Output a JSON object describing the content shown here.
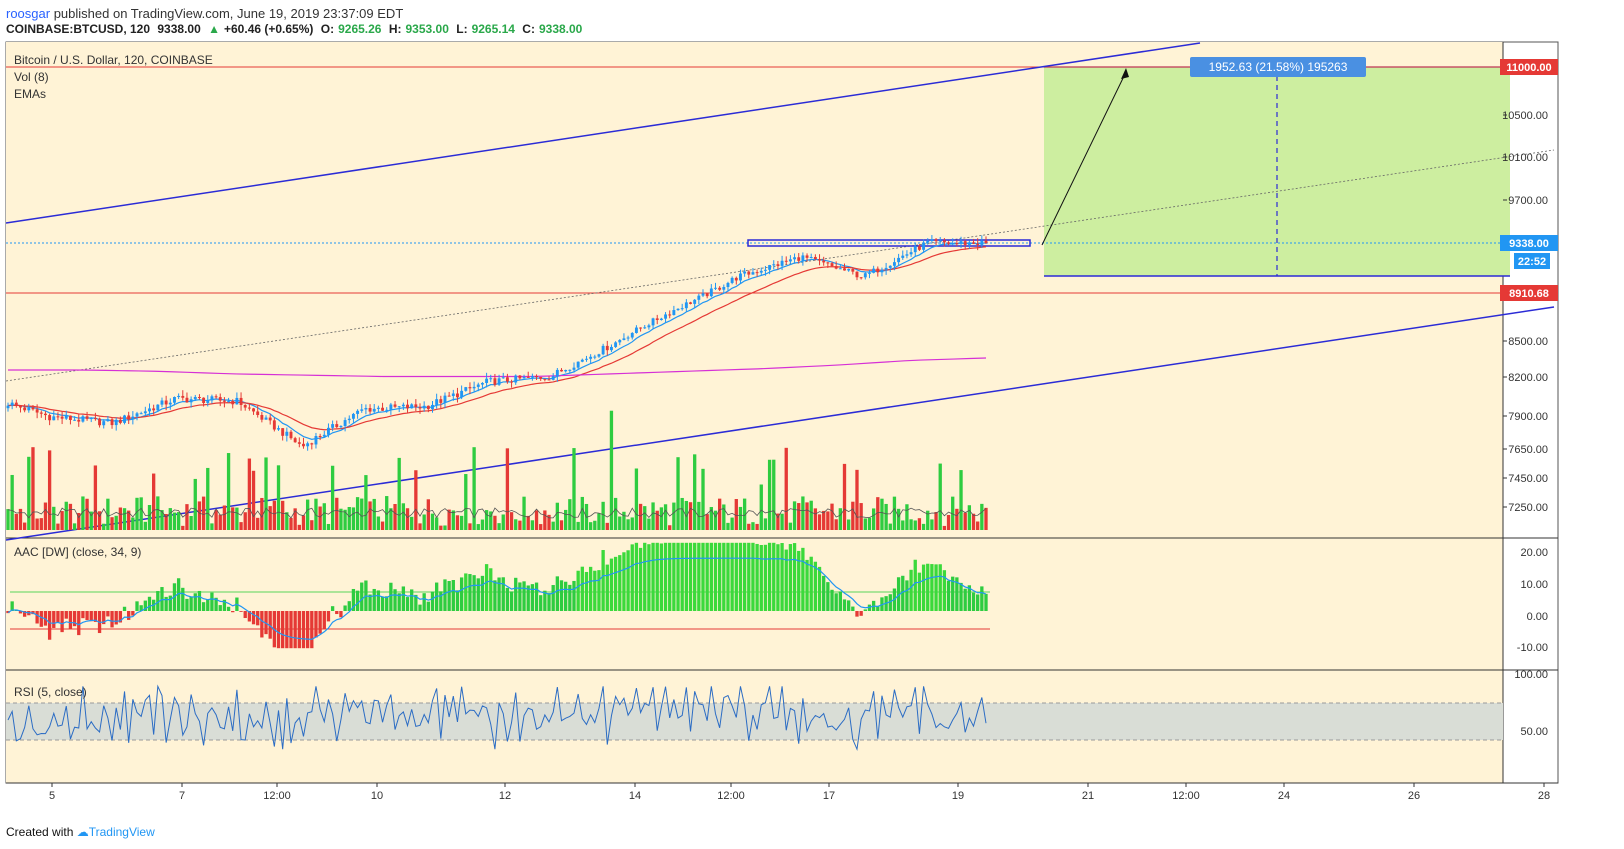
{
  "header": {
    "author": "roosgar",
    "published_text": "published on TradingView.com, June 19, 2019 23:37:09 EDT",
    "symbol": "COINBASE:BTCUSD, 120",
    "last": "9338.00",
    "change": "+60.46 (+0.65%)",
    "o_label": "O:",
    "o": "9265.26",
    "h_label": "H:",
    "h": "9353.00",
    "l_label": "L:",
    "l": "9265.14",
    "c_label": "C:",
    "c": "9338.00"
  },
  "legend": {
    "title": "Bitcoin / U.S. Dollar, 120, COINBASE",
    "vol": "Vol (8)",
    "emas": "EMAs",
    "aac": "AAC [DW] (close, 34, 9)",
    "rsi": "RSI (5, close)"
  },
  "price_axis": {
    "ticks": [
      "10500.00",
      "10100.00",
      "9700.00",
      "8500.00",
      "8200.00",
      "7900.00",
      "7650.00",
      "7450.00",
      "7250.00"
    ],
    "badges": [
      {
        "label": "11000.00",
        "color": "#e53935"
      },
      {
        "label": "9338.00",
        "color": "#2196f3"
      },
      {
        "label": "22:52",
        "color": "#2196f3"
      },
      {
        "label": "8910.68",
        "color": "#e53935"
      }
    ]
  },
  "aac_axis": {
    "ticks": [
      "20.00",
      "10.00",
      "0.00",
      "-10.00"
    ]
  },
  "rsi_axis": {
    "ticks": [
      "100.00",
      "50.00"
    ]
  },
  "time_axis": {
    "ticks": [
      "5",
      "7",
      "12:00",
      "10",
      "12",
      "14",
      "12:00",
      "17",
      "19",
      "21",
      "12:00",
      "24",
      "26",
      "28"
    ]
  },
  "projection": {
    "label": "1952.63 (21.58%) 195263"
  },
  "colors": {
    "up": "#2196f3",
    "down": "#e53935",
    "vol_up": "#2ecc40",
    "vol_down": "#e53935",
    "bg": "#fff3d6",
    "target": "#cdeea0"
  },
  "footer": {
    "created_with": "Created with",
    "brand": "TradingView"
  },
  "chart_data": {
    "type": "candlestick",
    "title": "Bitcoin / U.S. Dollar, 120, COINBASE",
    "symbol": "COINBASE:BTCUSD",
    "interval": "120",
    "ohlc_last": {
      "open": 9265.26,
      "high": 9353.0,
      "low": 9265.14,
      "close": 9338.0,
      "change": 60.46,
      "change_pct": 0.65
    },
    "close_anchors": [
      {
        "x": "Jun 4",
        "close": 7950
      },
      {
        "x": "Jun 5",
        "close": 7840
      },
      {
        "x": "Jun 6",
        "close": 7790
      },
      {
        "x": "Jun 7",
        "close": 7980
      },
      {
        "x": "Jun 8",
        "close": 7960
      },
      {
        "x": "Jun 9",
        "close": 7610
      },
      {
        "x": "Jun 10",
        "close": 7900
      },
      {
        "x": "Jun 11",
        "close": 7920
      },
      {
        "x": "Jun 12",
        "close": 8110
      },
      {
        "x": "Jun 13",
        "close": 8150
      },
      {
        "x": "Jun 14",
        "close": 8420
      },
      {
        "x": "Jun 15",
        "close": 8750
      },
      {
        "x": "Jun 16",
        "close": 9050
      },
      {
        "x": "Jun 17",
        "close": 9220
      },
      {
        "x": "Jun 18",
        "close": 9050
      },
      {
        "x": "Jun 19",
        "close": 9338
      }
    ],
    "horizontal_levels": [
      11000.0,
      9338.0,
      8910.68
    ],
    "resistance_box": {
      "price": 9338,
      "from": "Jun 16",
      "to": "Jun 19"
    },
    "target_projection": {
      "from_price": 9047.37,
      "to_price": 11000.0,
      "change": 1952.63,
      "change_pct": 21.58,
      "label": "1952.63 (21.58%) 195263"
    },
    "indicators": [
      "Vol (8)",
      "EMAs",
      "AAC [DW] (close, 34, 9)",
      "RSI (5, close)"
    ],
    "rsi_band": [
      30,
      70
    ],
    "price_range": [
      7150,
      11350
    ]
  }
}
